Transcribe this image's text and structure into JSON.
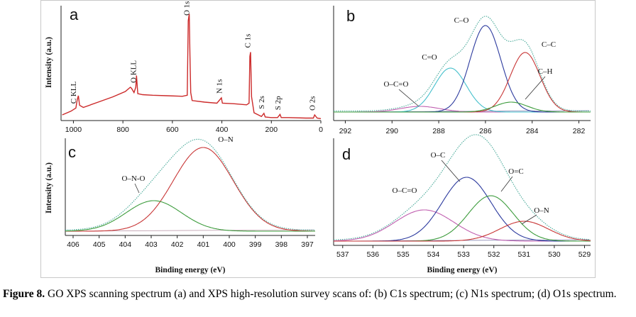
{
  "caption": {
    "lead": "Figure 8.",
    "text": " GO XPS scanning spectrum (a) and XPS high-resolution survey scans of: (b) C1s spectrum; (c) N1s spectrum; (d) O1s spectrum."
  },
  "chart_data": [
    {
      "panel": "a",
      "type": "line",
      "xlabel": "",
      "ylabel": "Intensity (a.u.)",
      "xlim": [
        1050,
        0
      ],
      "xticks": [
        1000,
        800,
        600,
        400,
        200,
        0
      ],
      "series": [
        {
          "color": "#cc2a2a",
          "x": [
            1045,
            1010,
            990,
            985,
            980,
            975,
            960,
            900,
            840,
            790,
            770,
            765,
            755,
            748,
            745,
            740,
            720,
            680,
            620,
            560,
            540,
            536,
            532,
            529,
            526,
            520,
            470,
            420,
            402,
            398,
            350,
            300,
            290,
            287,
            284,
            280,
            270,
            240,
            230,
            225,
            200,
            175,
            165,
            160,
            130,
            60,
            30,
            25,
            15,
            0
          ],
          "y": [
            8,
            15,
            21,
            36,
            44,
            26,
            22,
            32,
            42,
            52,
            60,
            58,
            50,
            60,
            82,
            48,
            46,
            45,
            44,
            43,
            45,
            185,
            198,
            120,
            50,
            35,
            32,
            30,
            40,
            30,
            29,
            27,
            30,
            118,
            126,
            42,
            12,
            5,
            11,
            4,
            3,
            3,
            9,
            3,
            3,
            2,
            2,
            8,
            2,
            1
          ]
        }
      ],
      "annotations": [
        {
          "label": "C KLL",
          "x": 990
        },
        {
          "label": "O KLL",
          "x": 748
        },
        {
          "label": "O 1s",
          "x": 532
        },
        {
          "label": "N 1s",
          "x": 400
        },
        {
          "label": "C 1s",
          "x": 285
        },
        {
          "label": "S 2s",
          "x": 230
        },
        {
          "label": "S 2p",
          "x": 164
        },
        {
          "label": "O 2s",
          "x": 25
        }
      ]
    },
    {
      "panel": "b",
      "type": "line",
      "xlabel": "",
      "ylabel": "",
      "xlim": [
        292.5,
        281.5
      ],
      "xticks": [
        292,
        290,
        288,
        286,
        284,
        282
      ],
      "components": [
        {
          "name": "O–C=O",
          "center": 288.8,
          "height": 8,
          "width": 2.0,
          "color": "#c060b0"
        },
        {
          "name": "C=O",
          "center": 287.5,
          "height": 62,
          "width": 1.6,
          "color": "#46c0cc"
        },
        {
          "name": "C–O",
          "center": 286.0,
          "height": 122,
          "width": 1.55,
          "color": "#2c3a9e"
        },
        {
          "name": "C–C",
          "center": 284.3,
          "height": 84,
          "width": 1.5,
          "color": "#c83636"
        },
        {
          "name": "C–H",
          "center": 284.9,
          "height": 14,
          "width": 1.6,
          "color": "#3d9c3d"
        }
      ],
      "envelope_color": "#4aaa9a",
      "baseline_color": "#7a7aaa"
    },
    {
      "panel": "c",
      "type": "line",
      "xlabel": "Binding energy (eV)",
      "ylabel": "Intensity (a.u.)",
      "xlim": [
        406.3,
        396.7
      ],
      "xticks": [
        406,
        405,
        404,
        403,
        402,
        401,
        400,
        399,
        398,
        397
      ],
      "components": [
        {
          "name": "O–N",
          "center": 401.0,
          "height": 118,
          "width": 2.7,
          "color": "#c83636"
        },
        {
          "name": "O–N-O",
          "center": 402.9,
          "height": 43,
          "width": 2.5,
          "color": "#3d9c3d"
        }
      ],
      "envelope_color": "#4aaa9a",
      "baseline_color": "#c0a0b0"
    },
    {
      "panel": "d",
      "type": "line",
      "xlabel": "Binding energy (eV)",
      "ylabel": "",
      "xlim": [
        537.3,
        528.8
      ],
      "xticks": [
        537,
        536,
        535,
        534,
        533,
        532,
        531,
        530,
        529
      ],
      "components": [
        {
          "name": "O–C=O",
          "center": 534.3,
          "height": 44,
          "width": 2.3,
          "color": "#c060b0"
        },
        {
          "name": "O–C",
          "center": 532.9,
          "height": 90,
          "width": 1.9,
          "color": "#2c3a9e"
        },
        {
          "name": "O=C",
          "center": 532.1,
          "height": 64,
          "width": 1.75,
          "color": "#3d9c3d"
        },
        {
          "name": "O–N",
          "center": 531.0,
          "height": 28,
          "width": 1.9,
          "color": "#c83636"
        }
      ],
      "envelope_color": "#4aaa9a",
      "baseline_color": "#7a7aaa"
    }
  ]
}
